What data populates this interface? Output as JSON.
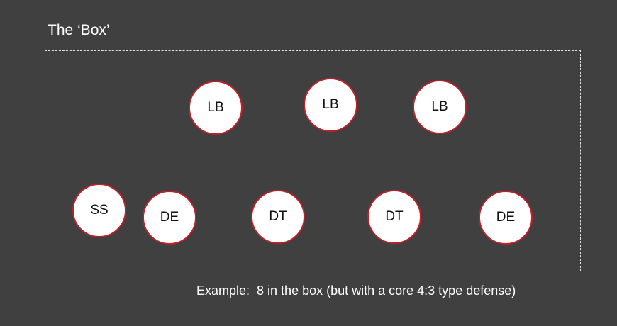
{
  "diagram": {
    "title": "The ‘Box’",
    "players": [
      {
        "label": "LB"
      },
      {
        "label": "LB"
      },
      {
        "label": "LB"
      },
      {
        "label": "SS"
      },
      {
        "label": "DE"
      },
      {
        "label": "DT"
      },
      {
        "label": "DT"
      },
      {
        "label": "DE"
      }
    ],
    "caption": "Example:  8 in the box (but with a core 4:3 type defense)",
    "colors": {
      "background": "#404040",
      "player_fill": "#ffffff",
      "player_outline": "#c0202a",
      "box_border": "#e6e6e6",
      "text": "#ffffff"
    }
  }
}
